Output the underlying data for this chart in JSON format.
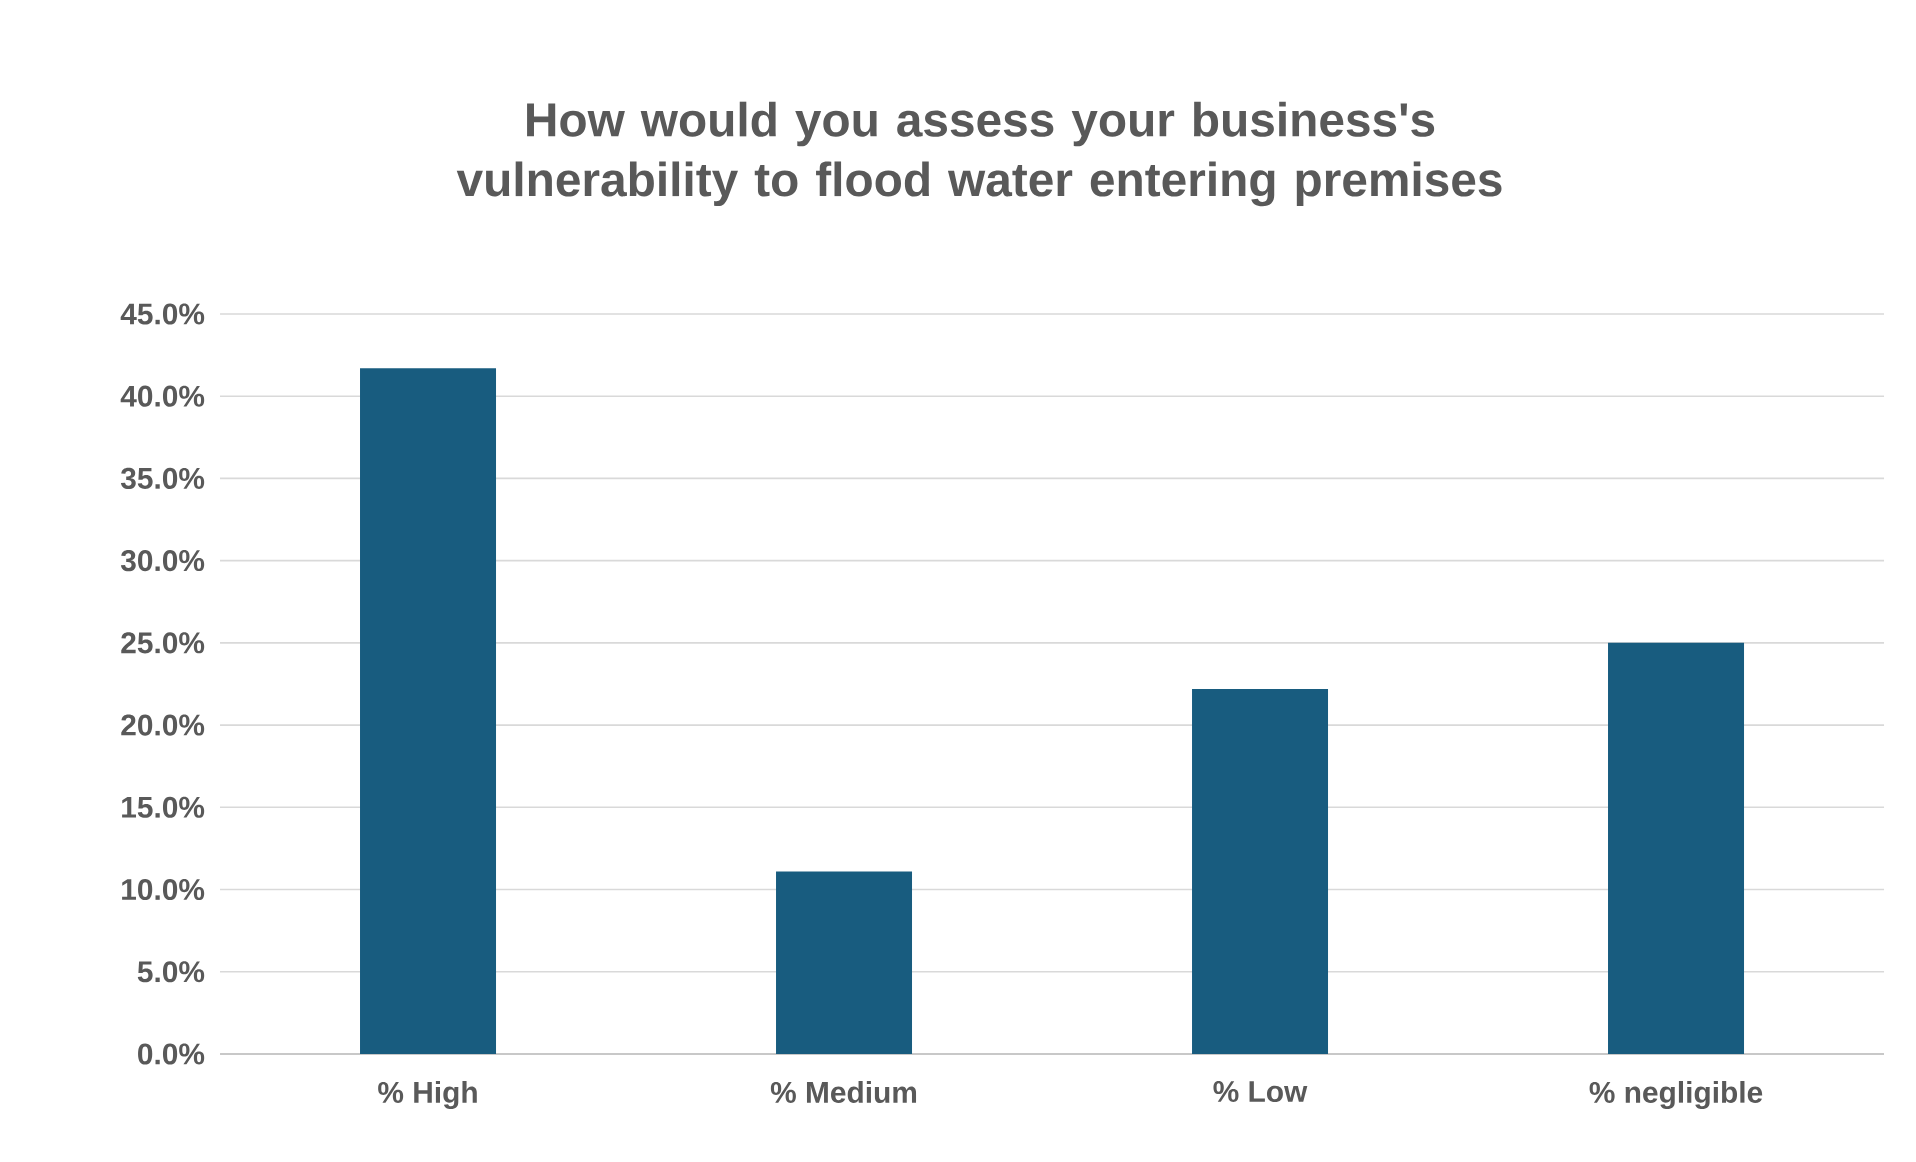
{
  "chart_data": {
    "type": "bar",
    "title": "How would you assess your business's vulnerability to flood water entering premises",
    "categories": [
      "% High",
      "% Medium",
      "%  Low",
      "% negligible"
    ],
    "values": [
      41.7,
      11.1,
      22.2,
      25.0
    ],
    "color": "#185c7f",
    "ylim": [
      0,
      45
    ],
    "yticks": [
      {
        "value": 0,
        "label": "0.0%"
      },
      {
        "value": 5,
        "label": "5.0%"
      },
      {
        "value": 10,
        "label": "10.0%"
      },
      {
        "value": 15,
        "label": "15.0%"
      },
      {
        "value": 20,
        "label": "20.0%"
      },
      {
        "value": 25,
        "label": "25.0%"
      },
      {
        "value": 30,
        "label": "30.0%"
      },
      {
        "value": 35,
        "label": "35.0%"
      },
      {
        "value": 40,
        "label": "40.0%"
      },
      {
        "value": 45,
        "label": "45.0%"
      }
    ],
    "grid": "y"
  }
}
